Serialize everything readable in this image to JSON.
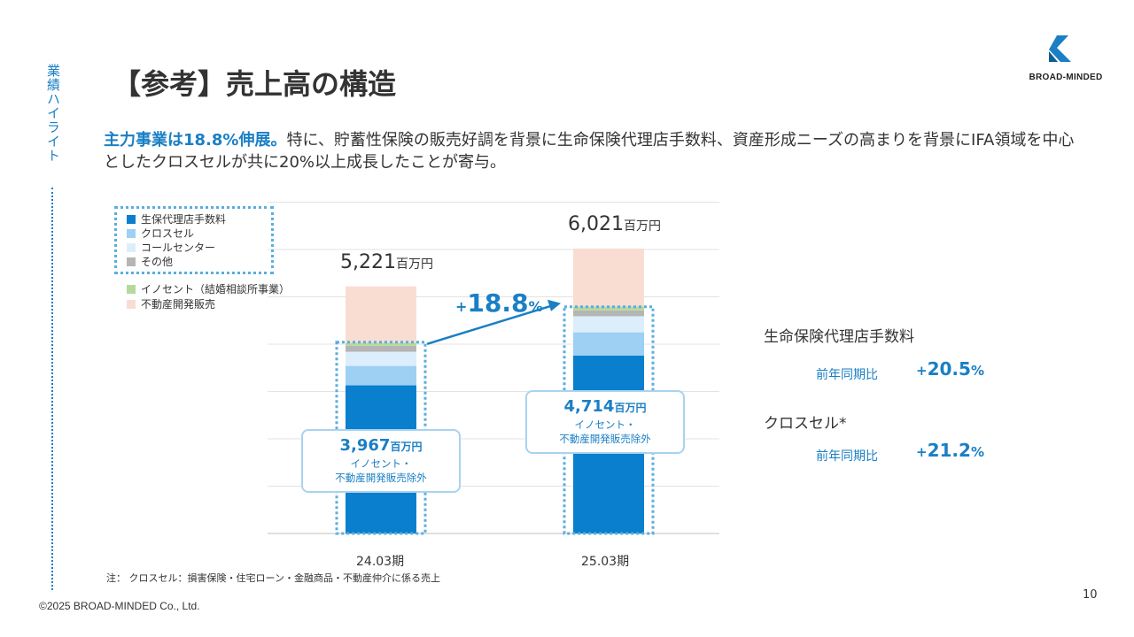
{
  "side_label": "業績ハイライト",
  "title": "【参考】売上高の構造",
  "logo": {
    "text": "BROAD-MINDED",
    "icon": "broad-minded-logo-icon",
    "color": "#1a7fc4"
  },
  "lead": {
    "highlight": "主力事業は18.8%伸展。",
    "text": "特に、貯蓄性保険の販売好調を背景に生命保険代理店手数料、資産形成ニーズの高まりを背景にIFA領域を中心としたクロスセルが共に20%以上成長したことが寄与。"
  },
  "chart_data": {
    "type": "bar",
    "stacked": true,
    "categories": [
      "24.03期",
      "25.03期"
    ],
    "totals": [
      5221,
      6021
    ],
    "total_unit": "百万円",
    "ylim": [
      0,
      7000
    ],
    "grid": true,
    "series": [
      {
        "name": "生保代理店手数料",
        "color": "#0a7fcd",
        "values": [
          3130,
          3760
        ]
      },
      {
        "name": "クロスセル",
        "color": "#9dd0f3",
        "values": [
          410,
          490
        ]
      },
      {
        "name": "コールセンター",
        "color": "#dceefb",
        "values": [
          300,
          340
        ]
      },
      {
        "name": "その他",
        "color": "#b5b5b5",
        "values": [
          127,
          124
        ]
      },
      {
        "name": "イノセント（結婚相談所事業）",
        "color": "#b5d99c",
        "values": [
          60,
          80
        ]
      },
      {
        "name": "不動産開発販売",
        "color": "#f9ddd3",
        "values": [
          1194,
          1227
        ]
      }
    ],
    "core_totals": [
      3967,
      4714
    ],
    "core_unit": "百万円",
    "core_note_line1": "イノセント・",
    "core_note_line2": "不動産開発販売除外",
    "growth": {
      "sign": "+",
      "value": "18.8",
      "unit": "%"
    },
    "legend_position": "top-left"
  },
  "totals_labels": [
    "5,221",
    "6,021"
  ],
  "core_labels": [
    "3,967",
    "4,714"
  ],
  "kpis": [
    {
      "title": "生命保険代理店手数料",
      "caption": "前年同期比",
      "sign": "+",
      "value": "20.5",
      "unit": "%"
    },
    {
      "title": "クロスセル*",
      "caption": "前年同期比",
      "sign": "+",
      "value": "21.2",
      "unit": "%"
    }
  ],
  "footnote": "注： クロスセル：損害保険・住宅ローン・金融商品・不動産仲介に係る売上",
  "copyright": "©2025 BROAD-MINDED Co., Ltd.",
  "page_number": "10"
}
